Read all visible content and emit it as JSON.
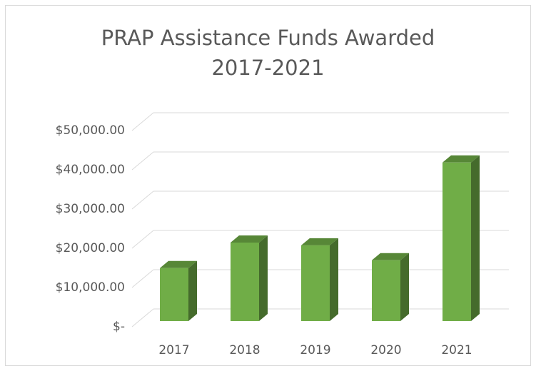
{
  "chart_data": {
    "type": "bar3d",
    "title": "PRAP Assistance Funds Awarded\n2017-2021",
    "categories": [
      "2017",
      "2018",
      "2019",
      "2020",
      "2021"
    ],
    "values": [
      13500,
      20000,
      19300,
      15500,
      40400
    ],
    "color": "#70ad47",
    "ylim": [
      0,
      50000
    ],
    "yticks": [
      {
        "value": 0,
        "label": "$-"
      },
      {
        "value": 10000,
        "label": "$10,000.00"
      },
      {
        "value": 20000,
        "label": "$20,000.00"
      },
      {
        "value": 30000,
        "label": "$30,000.00"
      },
      {
        "value": 40000,
        "label": "$40,000.00"
      },
      {
        "value": 50000,
        "label": "$50,000.00"
      }
    ],
    "grid": true
  }
}
